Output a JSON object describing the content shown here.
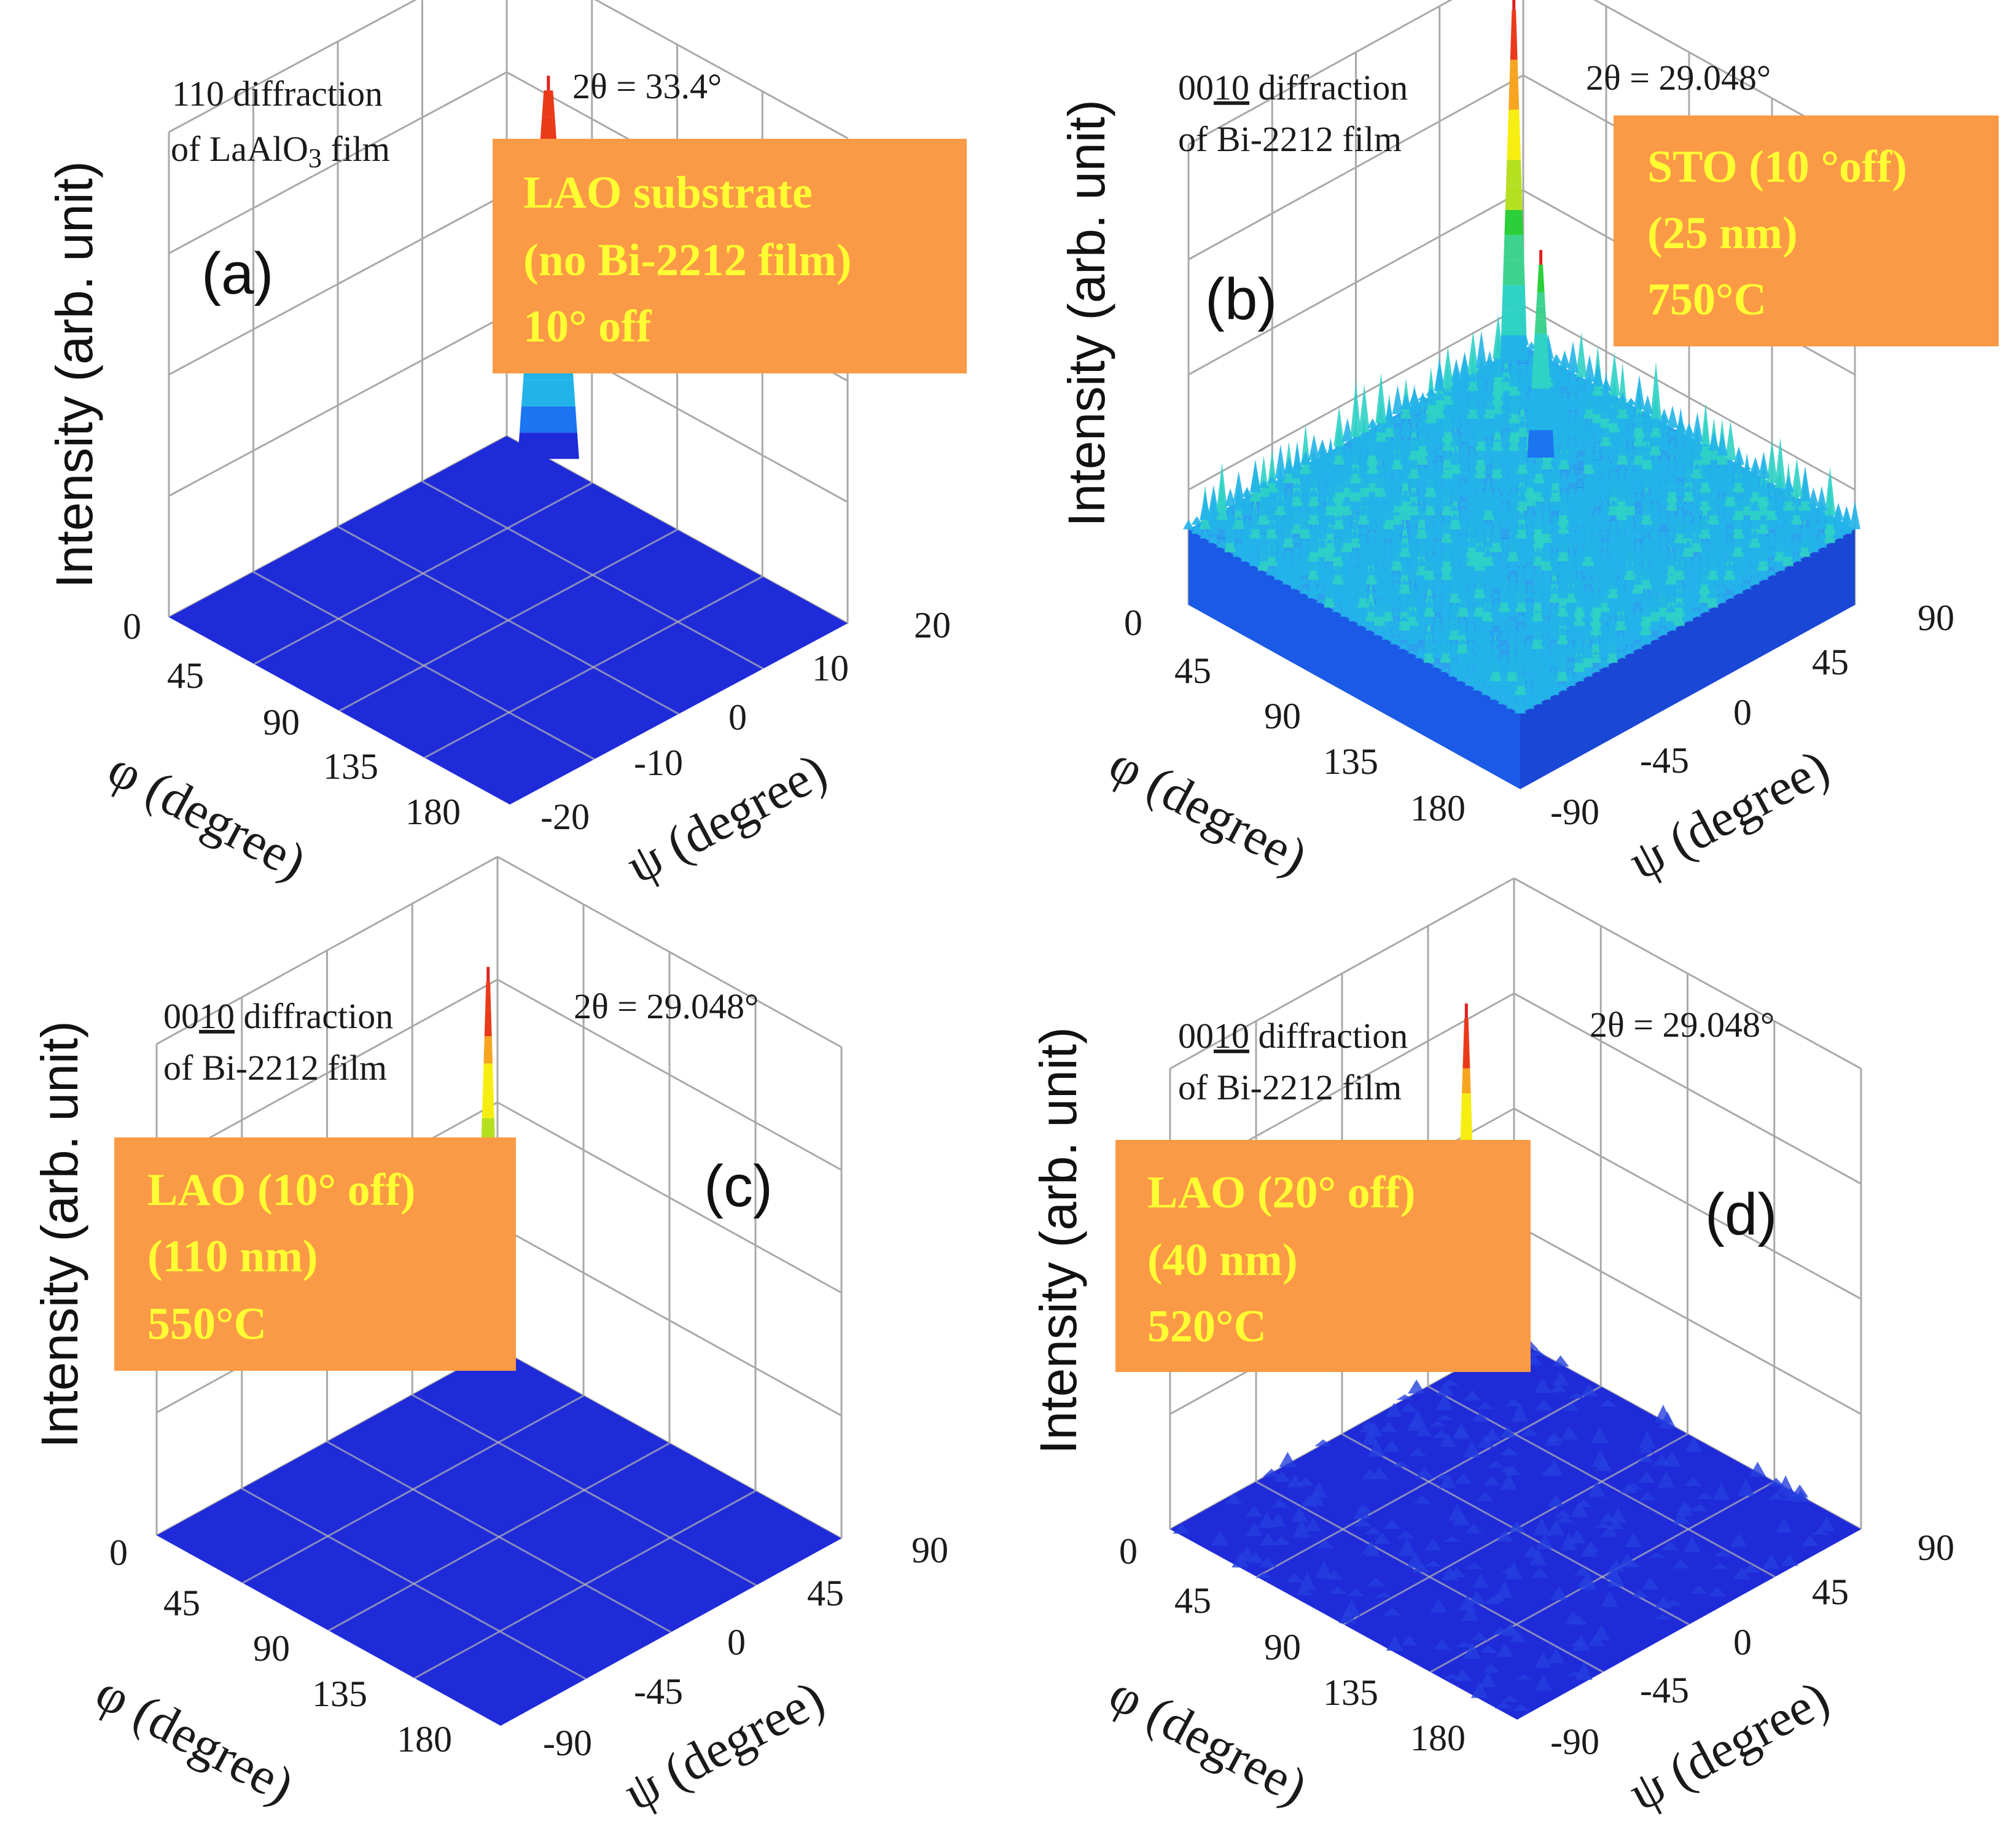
{
  "colors": {
    "floor": "#1f2bd8",
    "box": "#fb9a46",
    "box_text": "#ffff33",
    "jet": [
      "#1f2bd8",
      "#1b74f0",
      "#22b4e8",
      "#2fd2c5",
      "#3ed28f",
      "#2bcf3a",
      "#b5e020",
      "#f6ee10",
      "#f7a520",
      "#e93a1a"
    ]
  },
  "chart_data": [
    {
      "type": "surface3d",
      "panel": "(a)",
      "title": "110 diffraction of LaAlO3 film",
      "title_line1": "110 diffraction",
      "title_line2_prefix": "of LaAlO",
      "title_line2_sub": "3",
      "title_line2_suffix": "  film",
      "two_theta": "2θ = 33.4°",
      "two_theta_value": 33.4,
      "annotation": [
        "LAO substrate",
        "(no Bi-2212 film)",
        "10° off"
      ],
      "xlabel": "φ (degree)",
      "ylabel": "ψ (degree)",
      "zlabel": "Intensity (arb. unit)",
      "phi_ticks": [
        "45",
        "90",
        "135",
        "180"
      ],
      "psi_ticks": [
        "-20",
        "-10",
        "0",
        "10",
        "20"
      ],
      "z_tick": "0",
      "phi_range": [
        0,
        180
      ],
      "psi_range": [
        -20,
        20
      ],
      "background_level": 0.0,
      "noise": "none",
      "peaks": [
        {
          "phi": 22,
          "psi": 20,
          "height": 1.0
        }
      ]
    },
    {
      "type": "surface3d",
      "panel": "(b)",
      "title": "0010 diffraction of Bi-2212 film",
      "title_line1_pre": "00",
      "title_line1_ul": "10",
      "title_line1_post": " diffraction",
      "title_line2": "of  Bi-2212  film",
      "two_theta": "2θ = 29.048°",
      "two_theta_value": 29.048,
      "annotation": [
        "STO (10 °off)",
        "(25 nm)",
        "750°C"
      ],
      "xlabel": "φ (degree)",
      "ylabel": "ψ (degree)",
      "zlabel": "Intensity (arb. unit)",
      "phi_ticks": [
        "45",
        "90",
        "135",
        "180"
      ],
      "psi_ticks": [
        "-90",
        "-45",
        "0",
        "45",
        "90"
      ],
      "z_tick": "0",
      "phi_range": [
        0,
        180
      ],
      "psi_range": [
        -90,
        90
      ],
      "background_level": 0.22,
      "noise": "strong",
      "peaks": [
        {
          "phi": 5,
          "psi": 80,
          "height": 1.0
        },
        {
          "phi": 60,
          "psi": 40,
          "height": 0.55
        }
      ]
    },
    {
      "type": "surface3d",
      "panel": "(c)",
      "title": "0010 diffraction of Bi-2212 film",
      "title_line1_pre": "00",
      "title_line1_ul": "10",
      "title_line1_post": " diffraction",
      "title_line2": "of  Bi-2212  film",
      "two_theta": "2θ = 29.048°",
      "two_theta_value": 29.048,
      "annotation": [
        "LAO (10° off)",
        "(110 nm)",
        "550°C"
      ],
      "xlabel": "φ (degree)",
      "ylabel": "ψ (degree)",
      "zlabel": "Intensity (arb. unit)",
      "phi_ticks": [
        "45",
        "90",
        "135",
        "180"
      ],
      "psi_ticks": [
        "-90",
        "-45",
        "0",
        "45",
        "90"
      ],
      "z_tick": "0",
      "phi_range": [
        0,
        180
      ],
      "psi_range": [
        -90,
        90
      ],
      "background_level": 0.0,
      "noise": "none",
      "peaks": [
        {
          "phi": 5,
          "psi": 80,
          "height": 1.0
        }
      ]
    },
    {
      "type": "surface3d",
      "panel": "(d)",
      "title": "0010 diffraction of Bi-2212 film",
      "title_line1_pre": "00",
      "title_line1_ul": "10",
      "title_line1_post": " diffraction",
      "title_line2": "of  Bi-2212  film",
      "two_theta": "2θ = 29.048°",
      "two_theta_value": 29.048,
      "annotation": [
        "LAO (20° off)",
        "(40 nm)",
        "520°C"
      ],
      "xlabel": "φ (degree)",
      "ylabel": "ψ (degree)",
      "zlabel": "Intensity (arb. unit)",
      "phi_ticks": [
        "45",
        "90",
        "135",
        "180"
      ],
      "psi_ticks": [
        "-90",
        "-45",
        "0",
        "45",
        "90"
      ],
      "z_tick": "0",
      "phi_range": [
        0,
        180
      ],
      "psi_range": [
        -90,
        90
      ],
      "background_level": 0.02,
      "noise": "weak",
      "peaks": [
        {
          "phi": 5,
          "psi": 60,
          "height": 1.0
        }
      ]
    }
  ]
}
